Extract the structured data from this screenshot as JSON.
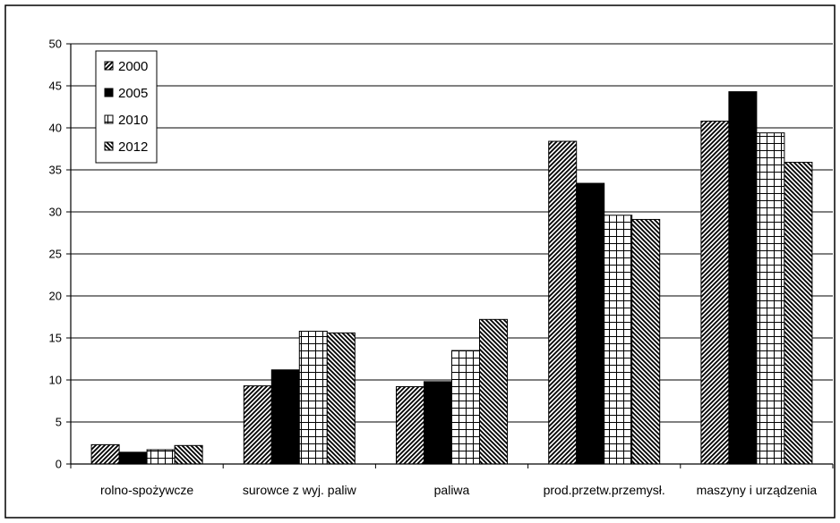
{
  "chart_data": {
    "type": "bar",
    "title": "",
    "xlabel": "",
    "ylabel": "",
    "ylim": [
      0,
      50
    ],
    "yticks": [
      0,
      5,
      10,
      15,
      20,
      25,
      30,
      35,
      40,
      45,
      50
    ],
    "grid": true,
    "legend_position": "top-left",
    "categories": [
      "rolno-spożywcze",
      "surowce z wyj. paliw",
      "paliwa",
      "prod.przetw.przemysł.",
      "maszyny i urządzenia"
    ],
    "series": [
      {
        "name": "2000",
        "pattern": "diag-fwd",
        "values": [
          2.3,
          9.3,
          9.2,
          38.4,
          40.8
        ]
      },
      {
        "name": "2005",
        "pattern": "solid",
        "values": [
          1.4,
          11.2,
          9.8,
          33.4,
          44.3
        ]
      },
      {
        "name": "2010",
        "pattern": "grid",
        "values": [
          1.7,
          15.8,
          13.5,
          29.6,
          39.4
        ]
      },
      {
        "name": "2012",
        "pattern": "diag-back",
        "values": [
          2.2,
          15.6,
          17.2,
          29.1,
          35.9
        ]
      }
    ]
  }
}
